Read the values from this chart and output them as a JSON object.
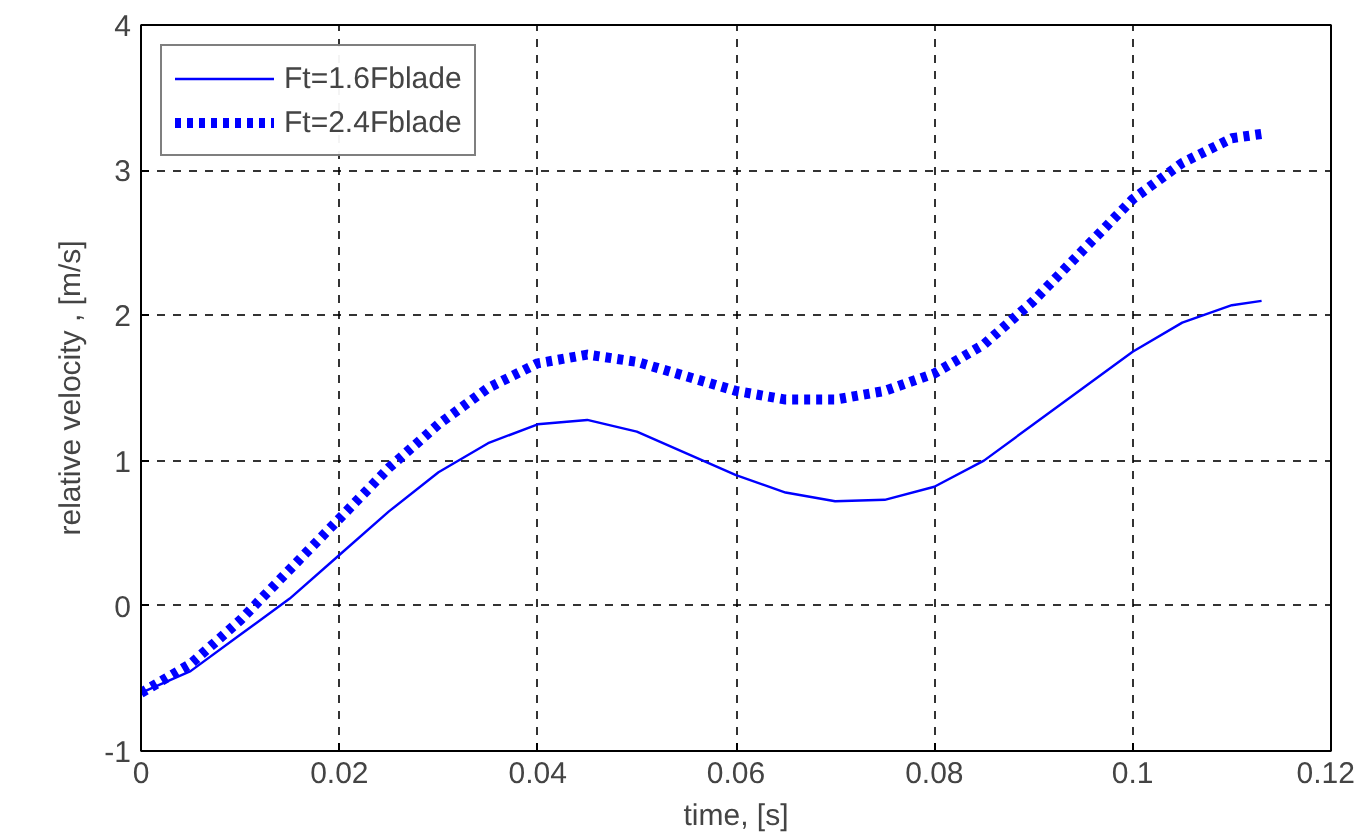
{
  "chart_data": {
    "type": "line",
    "xlabel": "time, [s]",
    "ylabel": "relative velocity , [m/s]",
    "x": [
      0,
      0.005,
      0.01,
      0.015,
      0.02,
      0.025,
      0.03,
      0.035,
      0.04,
      0.045,
      0.05,
      0.055,
      0.06,
      0.065,
      0.07,
      0.075,
      0.08,
      0.085,
      0.09,
      0.095,
      0.1,
      0.105,
      0.11,
      0.113
    ],
    "series": [
      {
        "name": "Ft=1.6Fblade",
        "color": "#0000ff",
        "line_style": "solid",
        "values": [
          -0.6,
          -0.45,
          -0.2,
          0.05,
          0.35,
          0.65,
          0.92,
          1.12,
          1.25,
          1.28,
          1.2,
          1.05,
          0.9,
          0.78,
          0.72,
          0.73,
          0.82,
          1.0,
          1.25,
          1.5,
          1.75,
          1.95,
          2.07,
          2.1
        ]
      },
      {
        "name": "Ft=2.4Fblade",
        "color": "#0000ff",
        "line_style": "dotted",
        "values": [
          -0.6,
          -0.4,
          -0.1,
          0.25,
          0.6,
          0.95,
          1.25,
          1.5,
          1.67,
          1.73,
          1.68,
          1.58,
          1.48,
          1.42,
          1.42,
          1.48,
          1.6,
          1.8,
          2.1,
          2.45,
          2.8,
          3.05,
          3.22,
          3.25
        ]
      }
    ],
    "xlim": [
      0,
      0.12
    ],
    "xticks": [
      0,
      0.02,
      0.04,
      0.06,
      0.08,
      0.1,
      0.12
    ],
    "ylim": [
      -1,
      4
    ],
    "yticks": [
      -1,
      0,
      1,
      2,
      3,
      4
    ],
    "grid": true,
    "legend": "top left"
  }
}
